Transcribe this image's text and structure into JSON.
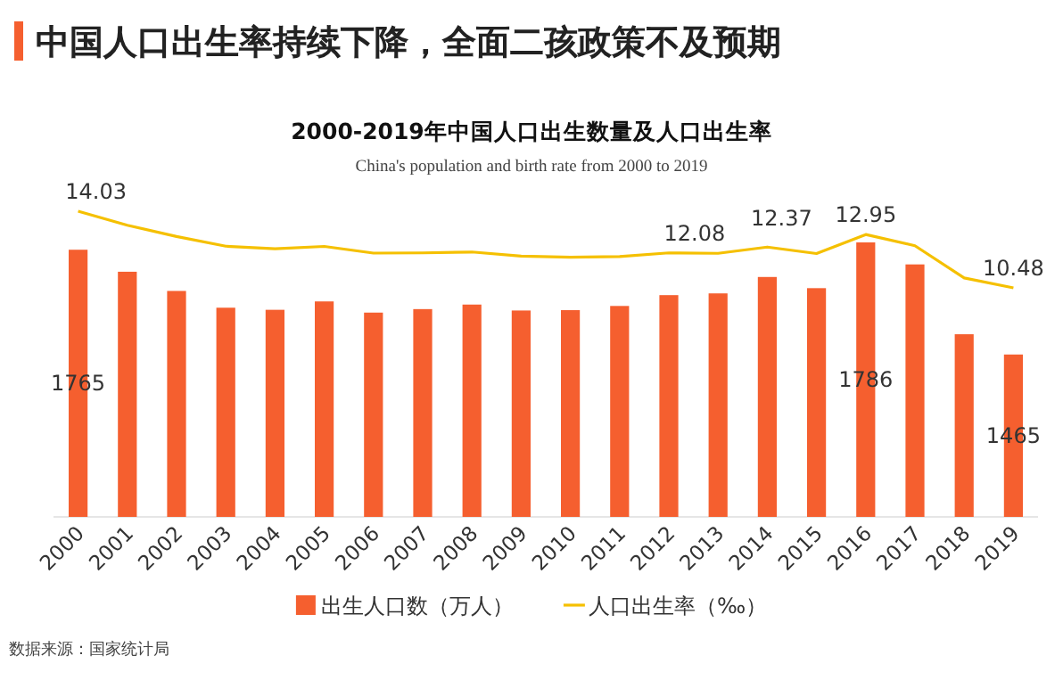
{
  "chart_data": {
    "type": "bar",
    "title": "中国人口出生率持续下降，全面二孩政策不及预期",
    "subtitle": "2000-2019年中国人口出生数量及人口出生率",
    "annotations": [
      "China's population and birth rate from 2000 to 2019",
      "数据来源：国家统计局"
    ],
    "categories": [
      "2000",
      "2001",
      "2002",
      "2003",
      "2004",
      "2005",
      "2006",
      "2007",
      "2008",
      "2009",
      "2010",
      "2011",
      "2012",
      "2013",
      "2014",
      "2015",
      "2016",
      "2017",
      "2018",
      "2019"
    ],
    "series": [
      {
        "name": "出生人口数（万人）",
        "color": "#f55f2f",
        "values": [
          1765,
          1702,
          1647,
          1599,
          1593,
          1617,
          1585,
          1595,
          1608,
          1591,
          1592,
          1604,
          1635,
          1640,
          1687,
          1655,
          1786,
          1723,
          1523,
          1465
        ],
        "value_labels": [
          "1765",
          null,
          null,
          null,
          null,
          null,
          null,
          null,
          null,
          null,
          null,
          null,
          null,
          null,
          null,
          null,
          "1786",
          null,
          null,
          "1465"
        ]
      },
      {
        "name": "人口出生率（‰）",
        "type": "line",
        "axis": "y2",
        "color": "#f5c000",
        "values": [
          14.03,
          13.38,
          12.86,
          12.41,
          12.29,
          12.4,
          12.09,
          12.1,
          12.14,
          11.95,
          11.9,
          11.93,
          12.1,
          12.08,
          12.37,
          12.07,
          12.95,
          12.43,
          10.94,
          10.48
        ],
        "value_labels": [
          "14.03",
          null,
          null,
          null,
          null,
          null,
          null,
          null,
          null,
          null,
          null,
          null,
          null,
          "12.08",
          "12.37",
          null,
          "12.95",
          null,
          null,
          "10.48"
        ]
      }
    ],
    "ylim": [
      1000,
      1786
    ],
    "tick_labels": "x",
    "legend": "bottom",
    "marker": "none",
    "grid": false
  }
}
